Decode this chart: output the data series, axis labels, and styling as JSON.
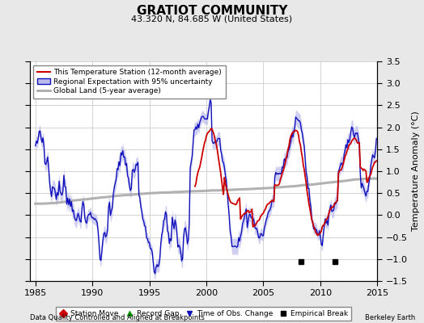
{
  "title": "GRATIOT COMMUNITY",
  "subtitle": "43.320 N, 84.685 W (United States)",
  "ylabel": "Temperature Anomaly (°C)",
  "xlabel_left": "Data Quality Controlled and Aligned at Breakpoints",
  "xlabel_right": "Berkeley Earth",
  "ylim": [
    -1.5,
    3.5
  ],
  "xlim": [
    1984.5,
    2015.0
  ],
  "yticks": [
    -1.5,
    -1.0,
    -0.5,
    0.0,
    0.5,
    1.0,
    1.5,
    2.0,
    2.5,
    3.0,
    3.5
  ],
  "xticks": [
    1985,
    1990,
    1995,
    2000,
    2005,
    2010,
    2015
  ],
  "bg_color": "#e8e8e8",
  "plot_bg_color": "#ffffff",
  "grid_color": "#cccccc",
  "red_color": "#cc0000",
  "blue_color": "#1111bb",
  "blue_fill_color": "#bbbbee",
  "gray_color": "#aaaaaa",
  "empirical_break_years": [
    2008.3,
    2011.3
  ],
  "empirical_break_y": -1.05,
  "legend1_items": [
    "This Temperature Station (12-month average)",
    "Regional Expectation with 95% uncertainty",
    "Global Land (5-year average)"
  ],
  "legend2_items": [
    "Station Move",
    "Record Gap",
    "Time of Obs. Change",
    "Empirical Break"
  ]
}
